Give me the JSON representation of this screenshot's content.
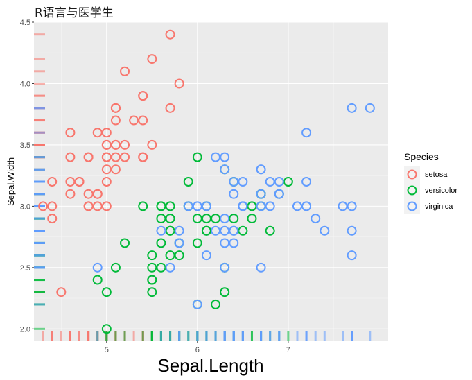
{
  "title": "R语言与医学生",
  "chart_data": {
    "type": "scatter",
    "title": "R语言与医学生",
    "xlabel": "Sepal.Length",
    "ylabel": "Sepal.Width",
    "xlim": [
      4.2,
      8.1
    ],
    "ylim": [
      1.9,
      4.5
    ],
    "xticks": [
      5,
      6,
      7
    ],
    "yticks": [
      2.0,
      2.5,
      3.0,
      3.5,
      4.0,
      4.5
    ],
    "xtick_labels": [
      "5",
      "6",
      "7"
    ],
    "ytick_labels": [
      "2.0",
      "2.5",
      "3.0",
      "3.5",
      "4.0",
      "4.5"
    ],
    "grid": true,
    "rug": true,
    "legend": {
      "title": "Species",
      "position": "right"
    },
    "series": [
      {
        "name": "setosa",
        "color": "#F8766D",
        "points": [
          [
            5.1,
            3.5
          ],
          [
            4.9,
            3.0
          ],
          [
            4.7,
            3.2
          ],
          [
            4.6,
            3.1
          ],
          [
            5.0,
            3.6
          ],
          [
            5.4,
            3.9
          ],
          [
            4.6,
            3.4
          ],
          [
            5.0,
            3.4
          ],
          [
            4.4,
            2.9
          ],
          [
            4.9,
            3.1
          ],
          [
            5.4,
            3.7
          ],
          [
            4.8,
            3.4
          ],
          [
            4.8,
            3.0
          ],
          [
            4.3,
            3.0
          ],
          [
            5.8,
            4.0
          ],
          [
            5.7,
            4.4
          ],
          [
            5.4,
            3.9
          ],
          [
            5.1,
            3.5
          ],
          [
            5.7,
            3.8
          ],
          [
            5.1,
            3.8
          ],
          [
            5.4,
            3.4
          ],
          [
            5.1,
            3.7
          ],
          [
            4.6,
            3.6
          ],
          [
            5.1,
            3.3
          ],
          [
            4.8,
            3.4
          ],
          [
            5.0,
            3.0
          ],
          [
            5.0,
            3.4
          ],
          [
            5.2,
            3.5
          ],
          [
            5.2,
            3.4
          ],
          [
            4.7,
            3.2
          ],
          [
            4.8,
            3.1
          ],
          [
            5.4,
            3.4
          ],
          [
            5.2,
            4.1
          ],
          [
            5.5,
            4.2
          ],
          [
            4.9,
            3.1
          ],
          [
            5.0,
            3.2
          ],
          [
            5.5,
            3.5
          ],
          [
            4.9,
            3.6
          ],
          [
            4.4,
            3.0
          ],
          [
            5.1,
            3.4
          ],
          [
            5.0,
            3.5
          ],
          [
            4.5,
            2.3
          ],
          [
            4.4,
            3.2
          ],
          [
            5.0,
            3.5
          ],
          [
            5.1,
            3.8
          ],
          [
            4.8,
            3.0
          ],
          [
            5.1,
            3.8
          ],
          [
            4.6,
            3.2
          ],
          [
            5.3,
            3.7
          ],
          [
            5.0,
            3.3
          ]
        ]
      },
      {
        "name": "versicolor",
        "color": "#00BA38",
        "points": [
          [
            7.0,
            3.2
          ],
          [
            6.4,
            3.2
          ],
          [
            6.9,
            3.1
          ],
          [
            5.5,
            2.3
          ],
          [
            6.5,
            2.8
          ],
          [
            5.7,
            2.8
          ],
          [
            6.3,
            3.3
          ],
          [
            4.9,
            2.4
          ],
          [
            6.6,
            2.9
          ],
          [
            5.2,
            2.7
          ],
          [
            5.0,
            2.0
          ],
          [
            5.9,
            3.0
          ],
          [
            6.0,
            2.2
          ],
          [
            6.1,
            2.9
          ],
          [
            5.6,
            2.9
          ],
          [
            6.7,
            3.1
          ],
          [
            5.6,
            3.0
          ],
          [
            5.8,
            2.7
          ],
          [
            6.2,
            2.2
          ],
          [
            5.6,
            2.5
          ],
          [
            5.9,
            3.2
          ],
          [
            6.1,
            2.8
          ],
          [
            6.3,
            2.5
          ],
          [
            6.1,
            2.8
          ],
          [
            6.4,
            2.9
          ],
          [
            6.6,
            3.0
          ],
          [
            6.8,
            2.8
          ],
          [
            6.7,
            3.0
          ],
          [
            6.0,
            2.9
          ],
          [
            5.7,
            2.6
          ],
          [
            5.5,
            2.4
          ],
          [
            5.5,
            2.4
          ],
          [
            5.8,
            2.7
          ],
          [
            6.0,
            2.7
          ],
          [
            5.4,
            3.0
          ],
          [
            6.0,
            3.4
          ],
          [
            6.7,
            3.1
          ],
          [
            6.3,
            2.3
          ],
          [
            5.6,
            3.0
          ],
          [
            5.5,
            2.5
          ],
          [
            5.5,
            2.6
          ],
          [
            6.1,
            3.0
          ],
          [
            5.8,
            2.6
          ],
          [
            5.0,
            2.3
          ],
          [
            5.6,
            2.7
          ],
          [
            5.7,
            3.0
          ],
          [
            5.7,
            2.9
          ],
          [
            6.2,
            2.9
          ],
          [
            5.1,
            2.5
          ],
          [
            5.7,
            2.8
          ]
        ]
      },
      {
        "name": "virginica",
        "color": "#619CFF",
        "points": [
          [
            6.3,
            3.3
          ],
          [
            5.8,
            2.7
          ],
          [
            7.1,
            3.0
          ],
          [
            6.3,
            2.9
          ],
          [
            6.5,
            3.0
          ],
          [
            7.6,
            3.0
          ],
          [
            4.9,
            2.5
          ],
          [
            7.3,
            2.9
          ],
          [
            6.7,
            2.5
          ],
          [
            7.2,
            3.6
          ],
          [
            6.5,
            3.2
          ],
          [
            6.4,
            2.7
          ],
          [
            6.8,
            3.0
          ],
          [
            5.7,
            2.5
          ],
          [
            5.8,
            2.8
          ],
          [
            6.4,
            3.2
          ],
          [
            6.5,
            3.0
          ],
          [
            7.7,
            3.8
          ],
          [
            7.7,
            2.6
          ],
          [
            6.0,
            2.2
          ],
          [
            6.9,
            3.2
          ],
          [
            5.6,
            2.8
          ],
          [
            7.7,
            2.8
          ],
          [
            6.3,
            2.7
          ],
          [
            6.7,
            3.3
          ],
          [
            7.2,
            3.2
          ],
          [
            6.2,
            2.8
          ],
          [
            6.1,
            3.0
          ],
          [
            6.4,
            2.8
          ],
          [
            7.2,
            3.0
          ],
          [
            7.4,
            2.8
          ],
          [
            7.9,
            3.8
          ],
          [
            6.4,
            2.8
          ],
          [
            6.3,
            2.8
          ],
          [
            6.1,
            2.6
          ],
          [
            7.7,
            3.0
          ],
          [
            6.3,
            3.4
          ],
          [
            6.4,
            3.1
          ],
          [
            6.0,
            3.0
          ],
          [
            6.9,
            3.1
          ],
          [
            6.7,
            3.1
          ],
          [
            6.9,
            3.1
          ],
          [
            5.8,
            2.7
          ],
          [
            6.8,
            3.2
          ],
          [
            6.7,
            3.3
          ],
          [
            6.7,
            3.0
          ],
          [
            6.3,
            2.5
          ],
          [
            6.5,
            3.0
          ],
          [
            6.2,
            3.4
          ],
          [
            5.9,
            3.0
          ]
        ]
      }
    ]
  }
}
